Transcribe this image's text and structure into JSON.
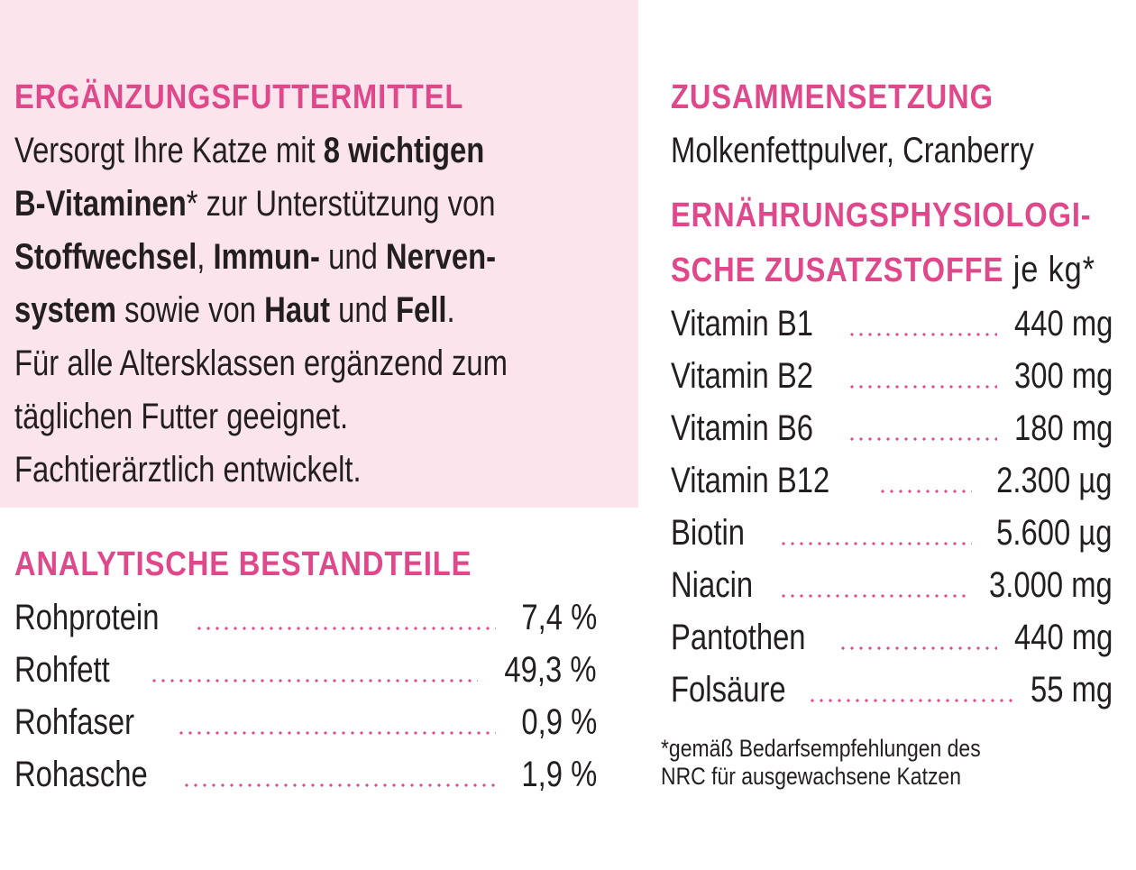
{
  "left": {
    "heading": "ERGÄNZUNGSFUTTERMITTEL",
    "para": {
      "l1a": "Versorgt Ihre Katze mit ",
      "l1b": "8 wichtigen",
      "l2a": "B-Vitaminen",
      "l2b": "* zur Unterstützung von",
      "l3a": "Stoffwechsel",
      "l3b": ", ",
      "l3c": "Immun-",
      "l3d": " und ",
      "l3e": "Nerven-",
      "l4a": "system",
      "l4b": " sowie von ",
      "l4c": "Haut",
      "l4d": " und ",
      "l4e": "Fell",
      "l4f": ".",
      "l5": "Für alle Altersklassen ergänzend zum",
      "l6": "täglichen Futter geeignet.",
      "l7": "Fachtierärztlich entwickelt."
    },
    "analysis_heading": "ANALYTISCHE BESTANDTEILE",
    "analysis": [
      {
        "label": "Rohprotein",
        "value": "7,4 %"
      },
      {
        "label": "Rohfett",
        "value": "49,3 %"
      },
      {
        "label": "Rohfaser",
        "value": "0,9 %"
      },
      {
        "label": "Rohasche",
        "value": "1,9 %"
      }
    ]
  },
  "right": {
    "composition_heading": "ZUSAMMENSETZUNG",
    "composition": "Molkenfettpulver, Cranberry",
    "additives_heading_1": "ERNÄHRUNGSPHYSIOLOGI-",
    "additives_heading_2": "SCHE ZUSATZSTOFFE",
    "additives_unit": " je kg*",
    "additives": [
      {
        "label": "Vitamin B1",
        "value": "440 mg"
      },
      {
        "label": "Vitamin B2",
        "value": "300 mg"
      },
      {
        "label": "Vitamin B6",
        "value": "180 mg"
      },
      {
        "label": "Vitamin B12",
        "value": "2.300 µg"
      },
      {
        "label": "Biotin",
        "value": "5.600 µg"
      },
      {
        "label": "Niacin",
        "value": "3.000 mg"
      },
      {
        "label": "Pantothen",
        "value": "440 mg"
      },
      {
        "label": "Folsäure",
        "value": "55 mg"
      }
    ],
    "footnote_1": "*gemäß Bedarfsempfehlungen des",
    "footnote_2": "NRC für ausgewachsene Katzen"
  },
  "colors": {
    "accent": "#e0488c",
    "box": "#fbe4ec",
    "text": "#231f20"
  }
}
